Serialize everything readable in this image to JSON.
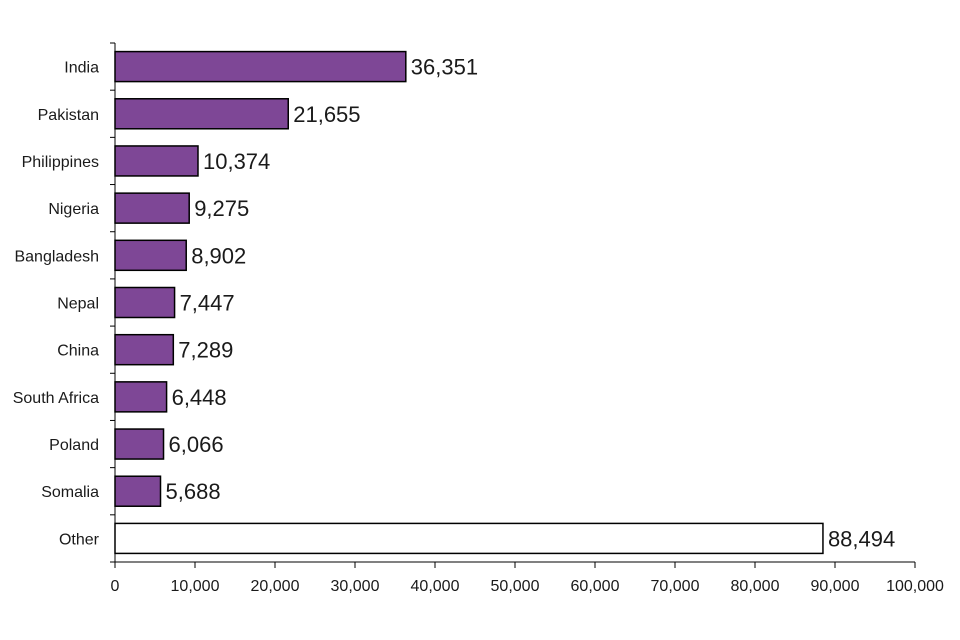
{
  "chart_data": {
    "type": "bar",
    "orientation": "horizontal",
    "categories": [
      "India",
      "Pakistan",
      "Philippines",
      "Nigeria",
      "Bangladesh",
      "Nepal",
      "China",
      "South Africa",
      "Poland",
      "Somalia",
      "Other"
    ],
    "values": [
      36351,
      21655,
      10374,
      9275,
      8902,
      7447,
      7289,
      6448,
      6066,
      5688,
      88494
    ],
    "value_labels": [
      "36,351",
      "21,655",
      "10,374",
      "9,275",
      "8,902",
      "7,447",
      "7,289",
      "6,448",
      "6,066",
      "5,688",
      "88,494"
    ],
    "xlim": [
      0,
      100000
    ],
    "x_ticks": [
      0,
      10000,
      20000,
      30000,
      40000,
      50000,
      60000,
      70000,
      80000,
      90000,
      100000
    ],
    "x_tick_labels": [
      "0",
      "10,000",
      "20,000",
      "30,000",
      "40,000",
      "50,000",
      "60,000",
      "70,000",
      "80,000",
      "90,000",
      "100,000"
    ],
    "grid": false,
    "colors": {
      "bar_fill": "#7e4796",
      "other_fill": "#ffffff",
      "bar_stroke": "#000000",
      "axis": "#000000"
    }
  }
}
